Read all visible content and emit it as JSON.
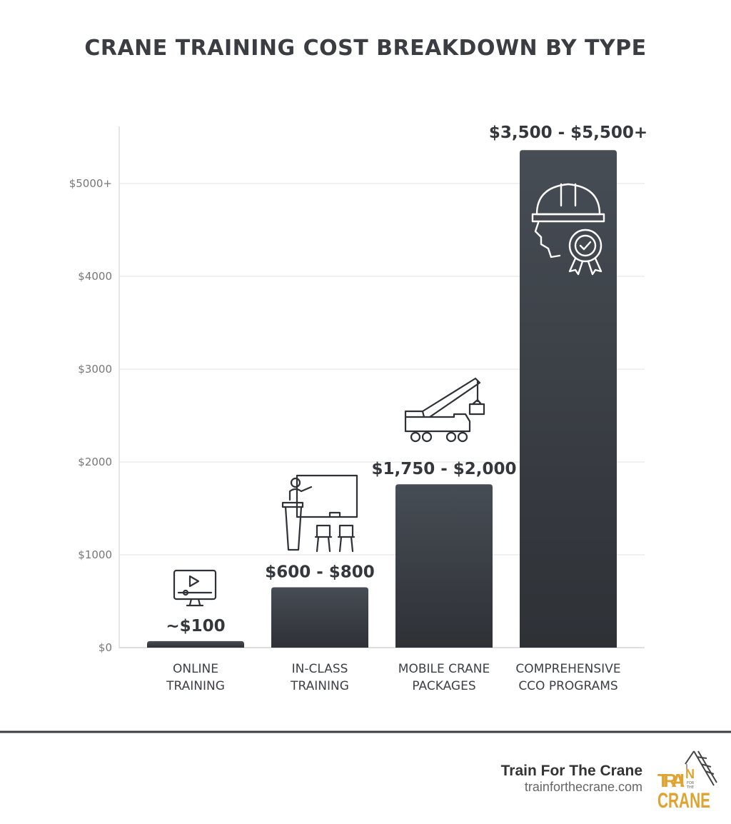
{
  "chart_data": {
    "type": "bar",
    "title": "CRANE TRAINING COST BREAKDOWN BY TYPE",
    "xlabel": "",
    "ylabel": "",
    "categories": [
      [
        "ONLINE",
        "TRAINING"
      ],
      [
        "IN-CLASS",
        "TRAINING"
      ],
      [
        "MOBILE CRANE",
        "PACKAGES"
      ],
      [
        "COMPREHENSIVE",
        "CCO PROGRAMS"
      ]
    ],
    "values": [
      70,
      650,
      1760,
      5360
    ],
    "data_labels": [
      "~$100",
      "$600 - $800",
      "$1,750 - $2,000",
      "$3,500 - $5,500+"
    ],
    "icons": [
      "monitor-video-icon",
      "classroom-teacher-icon",
      "mobile-crane-truck-icon",
      "hardhat-gear-badge-icon"
    ],
    "yticks": [
      0,
      1000,
      2000,
      3000,
      4000,
      5000
    ],
    "ytick_labels": [
      "$0",
      "$1000",
      "$2000",
      "$3000",
      "$4000",
      "$5000+"
    ],
    "ylim": [
      0,
      5600
    ],
    "grid": true,
    "legend": "none",
    "bar_color": "#3a3f46"
  },
  "footer": {
    "brand": "Train For The Crane",
    "url": "trainforthecrane.com",
    "logo_text": "TRAIN FOR THE CRANE",
    "accent": "#e0a231",
    "rule_color": "#3a3d42"
  }
}
